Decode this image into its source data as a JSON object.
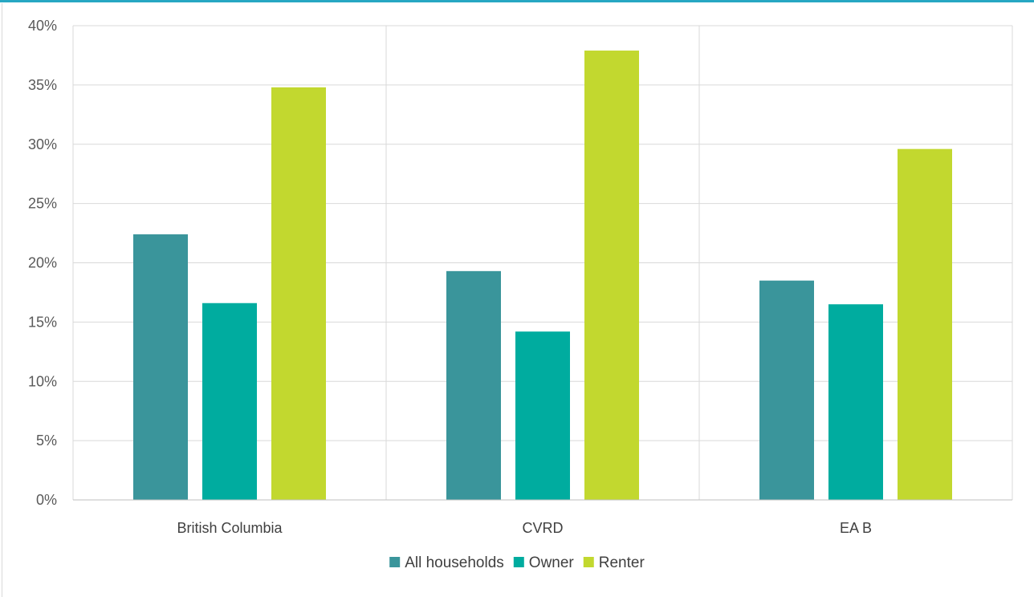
{
  "colors": {
    "top_strip": "#27a7c3",
    "grid": "#d9d9d9",
    "axis": "#bfbfbf"
  },
  "chart_data": {
    "type": "bar",
    "categories": [
      "British Columbia",
      "CVRD",
      "EA B"
    ],
    "series": [
      {
        "name": "All households",
        "color": "#3a959b",
        "values": [
          22.4,
          19.3,
          18.5
        ]
      },
      {
        "name": "Owner",
        "color": "#00ac9f",
        "values": [
          16.6,
          14.2,
          16.5
        ]
      },
      {
        "name": "Renter",
        "color": "#c2d82f",
        "values": [
          34.8,
          37.9,
          29.6
        ]
      }
    ],
    "yticks": [
      "0%",
      "5%",
      "10%",
      "15%",
      "20%",
      "25%",
      "30%",
      "35%",
      "40%"
    ],
    "ylim": [
      0,
      40
    ],
    "grid": true,
    "legend_position": "bottom"
  }
}
